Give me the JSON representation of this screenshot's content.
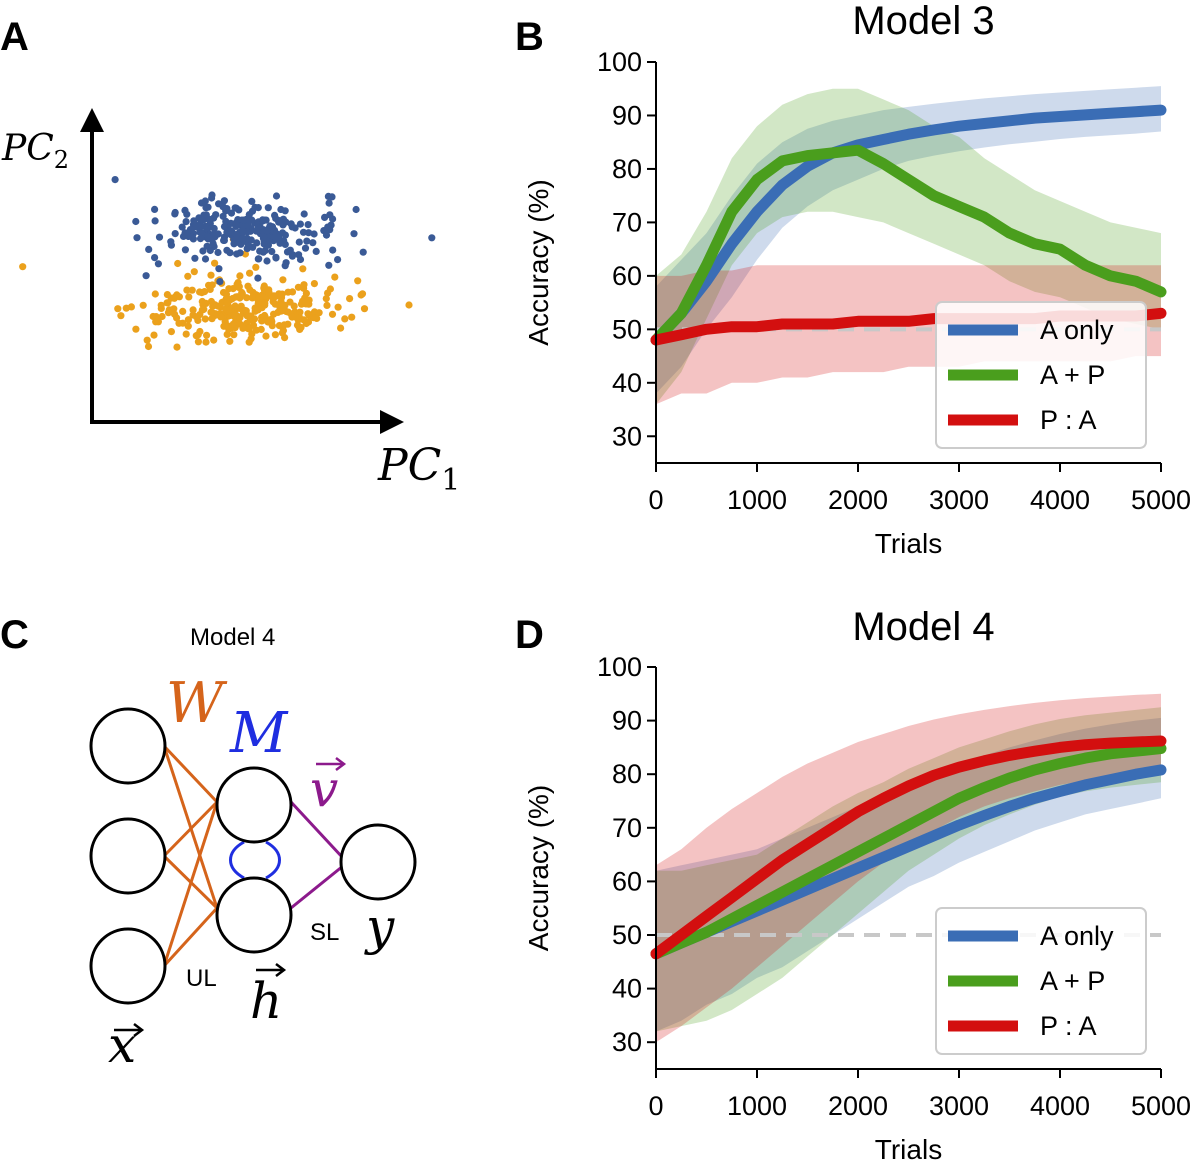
{
  "panels": {
    "A": "A",
    "B": "B",
    "C": "C",
    "D": "D"
  },
  "colors": {
    "blue": "#3a6db5",
    "green": "#4a9e1d",
    "red": "#d30f0f",
    "dot_blue": "#3a5a96",
    "dot_orange": "#eba11c",
    "W_color": "#d5641b",
    "M_color": "#1f2ee0",
    "v_color": "#8c1a8c",
    "chance_line": "#c8c8c8"
  },
  "panel_a": {
    "x_axis_label": "PC",
    "x_axis_sub": "1",
    "y_axis_label": "PC",
    "y_axis_sub": "2",
    "clusters": [
      "class-1-blue",
      "class-2-orange"
    ]
  },
  "panel_c": {
    "title": "Model 4",
    "W_label": "W",
    "M_label": "M",
    "v_label": "v",
    "x_label": "x",
    "h_label": "h",
    "y_label": "y",
    "UL_label": "UL",
    "SL_label": "SL"
  },
  "chart_data": [
    {
      "id": "model3",
      "type": "line",
      "title": "Model 3",
      "xlabel": "Trials",
      "ylabel": "Accuracy (%)",
      "xlim": [
        0,
        5000
      ],
      "ylim": [
        25,
        100
      ],
      "xticks": [
        "0",
        "1000",
        "2000",
        "3000",
        "4000",
        "5000"
      ],
      "yticks": [
        "30",
        "40",
        "50",
        "60",
        "70",
        "80",
        "90",
        "100"
      ],
      "chance_level": 50,
      "legend_position": "lower-right",
      "x": [
        0,
        250,
        500,
        750,
        1000,
        1250,
        1500,
        1750,
        2000,
        2250,
        2500,
        2750,
        3000,
        3250,
        3500,
        3750,
        4000,
        4250,
        4500,
        4750,
        5000
      ],
      "series": [
        {
          "name": "A only",
          "color": "#3a6db5",
          "values": [
            48,
            53,
            59,
            66,
            72,
            77,
            80.5,
            83,
            84.5,
            85.5,
            86.5,
            87.3,
            88,
            88.5,
            89,
            89.5,
            89.8,
            90.1,
            90.4,
            90.7,
            91
          ],
          "lower": [
            38,
            43,
            50,
            56,
            63,
            69,
            73,
            76,
            78,
            80,
            81.5,
            82.5,
            83.3,
            84,
            84.6,
            85.1,
            85.6,
            86,
            86.3,
            86.6,
            87
          ],
          "upper": [
            58,
            63,
            68,
            75,
            81,
            85,
            87.5,
            89,
            90,
            91,
            91.6,
            92.2,
            92.7,
            93.2,
            93.6,
            94,
            94.3,
            94.6,
            94.9,
            95.2,
            95.5
          ]
        },
        {
          "name": "A + P",
          "color": "#4a9e1d",
          "values": [
            48,
            53,
            62,
            72,
            78,
            81.5,
            82.5,
            83,
            83.5,
            81,
            78,
            75,
            73,
            71,
            68,
            66,
            65,
            62,
            60,
            59,
            57
          ],
          "lower": [
            36,
            42,
            52,
            62,
            68,
            71,
            72,
            72,
            71,
            70,
            68,
            66,
            64,
            62,
            59,
            57,
            56,
            54,
            52,
            51,
            50
          ],
          "upper": [
            60,
            64,
            72,
            82,
            88,
            92,
            94,
            95,
            95,
            93,
            91,
            88,
            86,
            82,
            79,
            76,
            74,
            72,
            70,
            69,
            68
          ]
        },
        {
          "name": "P : A",
          "color": "#d30f0f",
          "values": [
            48,
            49,
            50,
            50.5,
            50.5,
            51,
            51,
            51,
            51.5,
            51.5,
            51.5,
            52,
            52,
            52,
            52,
            52,
            52.5,
            52.5,
            52.5,
            52.5,
            53
          ],
          "lower": [
            36,
            38,
            38,
            40,
            40,
            41,
            41,
            42,
            42,
            42,
            43,
            43,
            43,
            44,
            44,
            44,
            44,
            44,
            44,
            45,
            45
          ],
          "upper": [
            60,
            60,
            61,
            61,
            62,
            62,
            62,
            62,
            62,
            62,
            62,
            62,
            62,
            62,
            62,
            62,
            62,
            62,
            62,
            62,
            62
          ]
        }
      ]
    },
    {
      "id": "model4",
      "type": "line",
      "title": "Model 4",
      "xlabel": "Trials",
      "ylabel": "Accuracy (%)",
      "xlim": [
        0,
        5000
      ],
      "ylim": [
        25,
        100
      ],
      "xticks": [
        "0",
        "1000",
        "2000",
        "3000",
        "4000",
        "5000"
      ],
      "yticks": [
        "30",
        "40",
        "50",
        "60",
        "70",
        "80",
        "90",
        "100"
      ],
      "chance_level": 50,
      "legend_position": "lower-right",
      "x": [
        0,
        250,
        500,
        750,
        1000,
        1250,
        1500,
        1750,
        2000,
        2250,
        2500,
        2750,
        3000,
        3250,
        3500,
        3750,
        4000,
        4250,
        4500,
        4750,
        5000
      ],
      "series": [
        {
          "name": "A only",
          "color": "#3a6db5",
          "values": [
            46.5,
            48.5,
            50.5,
            52.5,
            54.5,
            56.5,
            58.5,
            60.5,
            62.5,
            64.5,
            66.5,
            68.5,
            70.5,
            72.3,
            74,
            75.5,
            76.8,
            78,
            79,
            80,
            80.8
          ],
          "lower": [
            32,
            34,
            37,
            39,
            42,
            44,
            47,
            50,
            53,
            56,
            59,
            61,
            63.5,
            65.5,
            67.5,
            69.5,
            71,
            72.5,
            73.5,
            74.5,
            75.5
          ],
          "upper": [
            62,
            63,
            64,
            65,
            66,
            68,
            70,
            72,
            74,
            76,
            78,
            80,
            82,
            83.5,
            85,
            86.3,
            87.5,
            88.5,
            89.3,
            90,
            90.5
          ]
        },
        {
          "name": "A + P",
          "color": "#4a9e1d",
          "values": [
            46.5,
            48.5,
            50.5,
            53,
            55.5,
            58,
            60.5,
            63,
            65.5,
            68,
            70.5,
            73,
            75.5,
            77.5,
            79.3,
            80.8,
            82,
            83,
            83.8,
            84.3,
            84.8
          ],
          "lower": [
            32,
            33,
            34,
            36,
            39,
            42,
            46,
            50,
            54,
            58,
            62,
            65,
            68,
            70.5,
            72.5,
            74.3,
            75.8,
            76.8,
            77.5,
            78,
            78.5
          ],
          "upper": [
            62,
            62,
            63,
            64,
            65,
            68,
            71,
            74,
            76.5,
            78.5,
            81,
            83,
            85,
            86.5,
            88,
            89.3,
            90.3,
            91,
            91.5,
            92,
            92.5
          ]
        },
        {
          "name": "P : A",
          "color": "#d30f0f",
          "values": [
            46.5,
            50,
            53.5,
            57,
            60.5,
            64,
            67,
            70,
            73,
            75.5,
            77.8,
            79.8,
            81.3,
            82.5,
            83.5,
            84.3,
            85,
            85.5,
            85.8,
            86,
            86.2
          ],
          "lower": [
            30,
            33,
            36.5,
            40,
            44,
            48,
            52,
            56,
            60,
            63.5,
            66.5,
            69.5,
            72,
            74,
            75.5,
            76.8,
            78,
            78.8,
            79.3,
            79.8,
            80
          ],
          "upper": [
            63,
            66,
            70,
            73.5,
            76.5,
            79.5,
            82,
            84,
            86,
            87.5,
            89,
            90.2,
            91.2,
            92,
            92.7,
            93.3,
            93.8,
            94.2,
            94.5,
            94.8,
            95
          ]
        }
      ]
    }
  ]
}
